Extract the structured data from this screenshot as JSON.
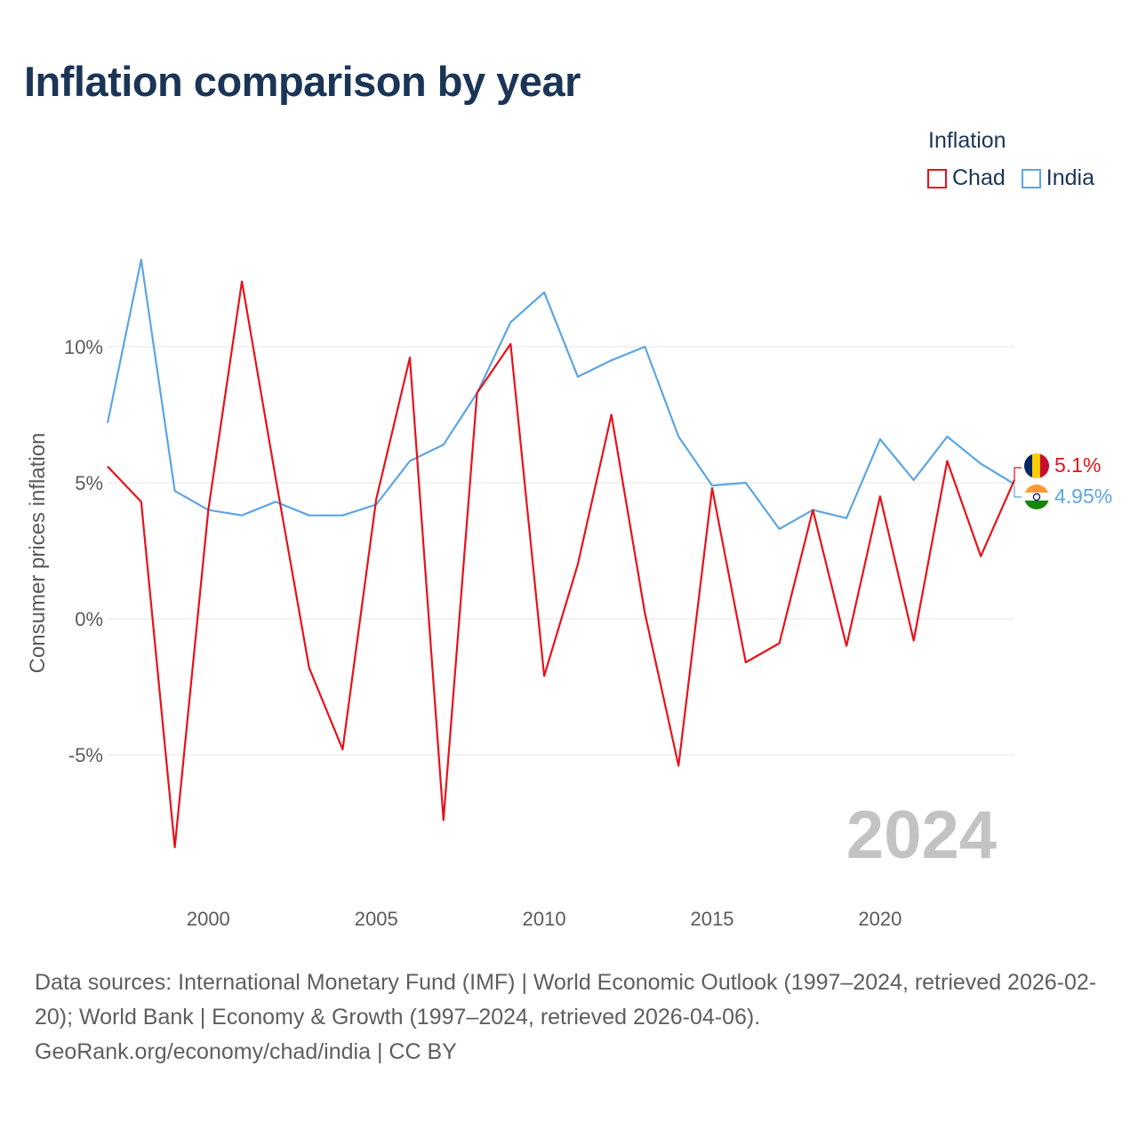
{
  "title": "Inflation comparison by year",
  "legend": {
    "title": "Inflation",
    "items": [
      {
        "label": "Chad",
        "color": "#e8111a"
      },
      {
        "label": "India",
        "color": "#5ca5e3"
      }
    ]
  },
  "current_year": "2024",
  "end_labels": {
    "chad": "5.1%",
    "india": "4.95%"
  },
  "source": {
    "text": "Data sources: International Monetary Fund (IMF) | World Economic Outlook (1997–2024, retrieved 2026-02-20); World Bank | Economy & Growth (1997–2024, retrieved 2026-04-06).",
    "credit": "GeoRank.org/economy/chad/india | CC BY"
  },
  "chart_data": {
    "type": "line",
    "title": "Inflation comparison by year",
    "xlabel": "",
    "ylabel": "Consumer prices inflation",
    "xlim": [
      1997,
      2024
    ],
    "ylim": [
      -9.5,
      14
    ],
    "x_ticks": [
      2000,
      2005,
      2010,
      2015,
      2020
    ],
    "y_ticks": [
      -5,
      0,
      5,
      10
    ],
    "y_tick_labels": [
      "-5%",
      "0%",
      "5%",
      "10%"
    ],
    "grid": true,
    "legend_position": "top-right",
    "x": [
      1997,
      1998,
      1999,
      2000,
      2001,
      2002,
      2003,
      2004,
      2005,
      2006,
      2007,
      2008,
      2009,
      2010,
      2011,
      2012,
      2013,
      2014,
      2015,
      2016,
      2017,
      2018,
      2019,
      2020,
      2021,
      2022,
      2023,
      2024
    ],
    "series": [
      {
        "name": "Chad",
        "color": "#e8111a",
        "values": [
          5.6,
          4.3,
          -8.4,
          4.0,
          12.4,
          5.2,
          -1.8,
          -4.8,
          4.4,
          9.6,
          -7.4,
          8.3,
          10.1,
          -2.1,
          2.0,
          7.5,
          0.2,
          -5.4,
          4.8,
          -1.6,
          -0.9,
          4.0,
          -1.0,
          4.5,
          -0.8,
          5.8,
          2.3,
          5.1
        ]
      },
      {
        "name": "India",
        "color": "#5ca5e3",
        "values": [
          7.2,
          13.2,
          4.7,
          4.0,
          3.8,
          4.3,
          3.8,
          3.8,
          4.2,
          5.8,
          6.4,
          8.3,
          10.9,
          12.0,
          8.9,
          9.5,
          10.0,
          6.7,
          4.9,
          5.0,
          3.3,
          4.0,
          3.7,
          6.6,
          5.1,
          6.7,
          5.7,
          4.95
        ]
      }
    ]
  }
}
